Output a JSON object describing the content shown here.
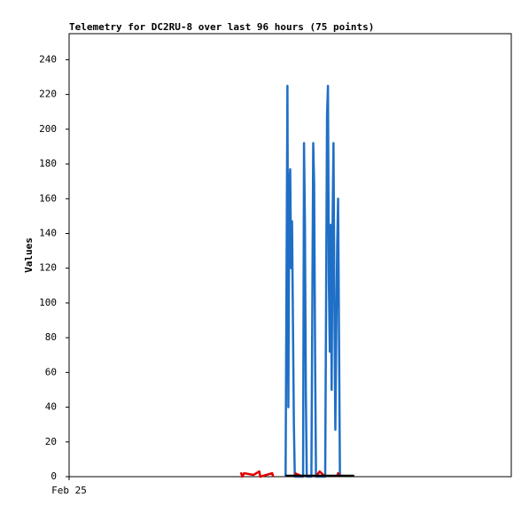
{
  "chart_data": {
    "type": "line",
    "title": "Telemetry for DC2RU-8 over last 96 hours (75 points)",
    "ylabel": "Values",
    "x": [
      37.3,
      37.6,
      38.0,
      40.0,
      41.3,
      41.5,
      44.1,
      44.3,
      47.0,
      47.2,
      47.4,
      47.6,
      47.8,
      48.0,
      48.2,
      48.4,
      48.6,
      48.8,
      49.0,
      50.8,
      51.0,
      51.2,
      51.4,
      51.6,
      52.6,
      52.8,
      53.0,
      53.2,
      53.4,
      53.6,
      54.4,
      55.6,
      55.8,
      56.0,
      56.2,
      56.4,
      56.6,
      56.8,
      57.0,
      57.2,
      57.4,
      57.6,
      57.8,
      58.0,
      58.2,
      58.4,
      58.6,
      58.8,
      61.9
    ],
    "series": [
      {
        "color": "#1f6fc6",
        "values": [
          null,
          null,
          null,
          null,
          null,
          null,
          null,
          null,
          0,
          112,
          225,
          40,
          168,
          177,
          120,
          147,
          88,
          30,
          0,
          0,
          192,
          145,
          48,
          0,
          0,
          97,
          192,
          168,
          72,
          0,
          0,
          0,
          104,
          208,
          225,
          112,
          72,
          145,
          50,
          145,
          192,
          97,
          27,
          80,
          133,
          160,
          80,
          0,
          null
        ]
      },
      {
        "color": "#e00000",
        "values": [
          2.5,
          0,
          2,
          1,
          3,
          0,
          2,
          0,
          null,
          null,
          null,
          null,
          null,
          null,
          null,
          null,
          null,
          null,
          2,
          0,
          null,
          null,
          null,
          null,
          null,
          null,
          null,
          null,
          null,
          0,
          3,
          0,
          null,
          null,
          null,
          null,
          null,
          null,
          null,
          null,
          null,
          null,
          null,
          null,
          0,
          2,
          0,
          null,
          null
        ]
      },
      {
        "color": "#000000",
        "values": [
          null,
          null,
          null,
          null,
          null,
          null,
          null,
          null,
          0.5,
          0.5,
          0.5,
          0.5,
          0.5,
          0.5,
          0.5,
          0.5,
          0.5,
          0.5,
          0.5,
          0.5,
          0.5,
          0.5,
          0.5,
          0.5,
          0.5,
          0.5,
          0.5,
          0.5,
          0.5,
          0.5,
          0.5,
          0.5,
          0.5,
          0.5,
          0.5,
          0.5,
          0.5,
          0.5,
          0.5,
          0.5,
          0.5,
          0.5,
          0.5,
          0.5,
          0.5,
          0.5,
          0.5,
          0.5,
          0.5
        ]
      }
    ],
    "xlim": [
      0,
      96
    ],
    "xticks": [
      {
        "value": 0,
        "label": "Feb 25"
      }
    ],
    "ylim": [
      0,
      255
    ],
    "yticks": [
      0,
      20,
      40,
      60,
      80,
      100,
      120,
      140,
      160,
      180,
      200,
      220,
      240
    ],
    "grid": false
  }
}
